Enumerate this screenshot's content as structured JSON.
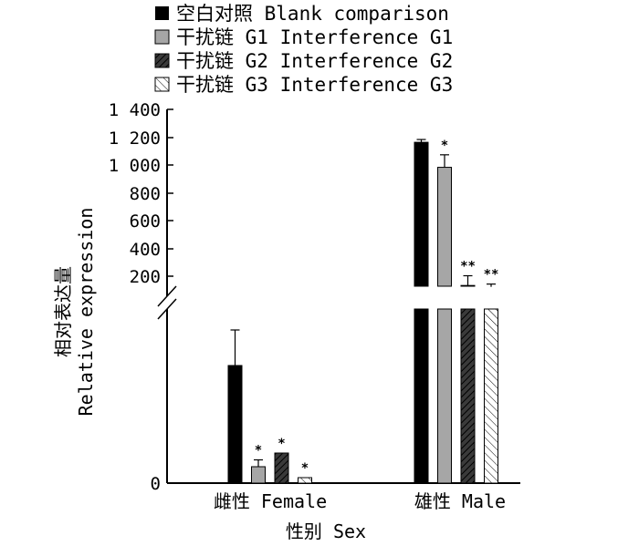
{
  "chart_data": {
    "type": "bar",
    "title": "",
    "xlabel": "性别 Sex",
    "ylabel_cn": "相对表达量",
    "ylabel_en": "Relative expression",
    "categories": [
      "雌性 Female",
      "雄性 Male"
    ],
    "yticks": [
      "1 400",
      "1 200",
      "1 000",
      "800",
      "600",
      "400",
      "200",
      "0"
    ],
    "axis_break": true,
    "legend_position": "top",
    "series": [
      {
        "name": "空白对照 Blank comparison",
        "pattern": "solid-black",
        "values": [
          4.3,
          1160
        ],
        "errors": [
          1.3,
          20
        ],
        "sig": [
          "",
          ""
        ]
      },
      {
        "name": "干扰链 G1 Interference G1",
        "pattern": "solid-gray",
        "values": [
          0.6,
          980
        ],
        "errors": [
          0.25,
          90
        ],
        "sig": [
          "*",
          "*"
        ]
      },
      {
        "name": "干扰链 G2 Interference G2",
        "pattern": "hatch-dark",
        "values": [
          1.1,
          130
        ],
        "errors": [
          0,
          70
        ],
        "sig": [
          "*",
          "**"
        ]
      },
      {
        "name": "干扰链 G3 Interference G3",
        "pattern": "hatch-light",
        "values": [
          0.2,
          120
        ],
        "errors": [
          0,
          20
        ],
        "sig": [
          "*",
          "**"
        ]
      }
    ],
    "colors": {
      "black": "#000000",
      "gray": "#a6a6a6",
      "hatch_dark_bg": "#404040",
      "hatch_light_bg": "#ffffff"
    }
  }
}
